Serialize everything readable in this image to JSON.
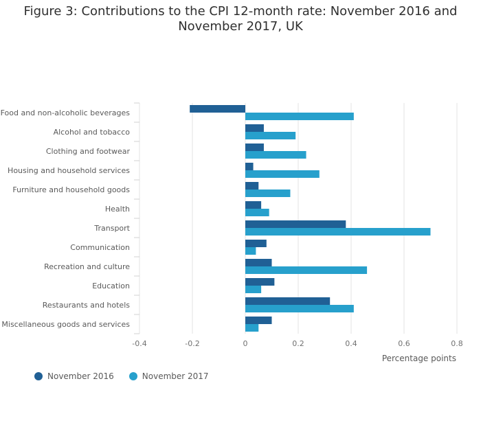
{
  "chart_data": {
    "type": "bar",
    "orientation": "horizontal",
    "title": "Figure 3: Contributions to the CPI 12-month rate: November 2016 and November 2017, UK",
    "xlabel": "Percentage points",
    "ylabel": "",
    "xlim": [
      -0.4,
      0.8
    ],
    "xticks": [
      -0.4,
      -0.2,
      0,
      0.2,
      0.4,
      0.6,
      0.8
    ],
    "xtick_labels": [
      "-0.4",
      "-0.2",
      "0",
      "0.2",
      "0.4",
      "0.6",
      "0.8"
    ],
    "grid": true,
    "legend_position": "bottom-left",
    "categories": [
      "Food and non-alcoholic beverages",
      "Alcohol and tobacco",
      "Clothing and footwear",
      "Housing and household services",
      "Furniture and household goods",
      "Health",
      "Transport",
      "Communication",
      "Recreation and culture",
      "Education",
      "Restaurants and hotels",
      "Miscellaneous goods and services"
    ],
    "series": [
      {
        "name": "November 2016",
        "color": "#206095",
        "values": [
          -0.21,
          0.07,
          0.07,
          0.03,
          0.05,
          0.06,
          0.38,
          0.08,
          0.1,
          0.11,
          0.32,
          0.1
        ]
      },
      {
        "name": "November 2017",
        "color": "#27A0CC",
        "values": [
          0.41,
          0.19,
          0.23,
          0.28,
          0.17,
          0.09,
          0.7,
          0.04,
          0.46,
          0.06,
          0.41,
          0.05
        ]
      }
    ]
  }
}
